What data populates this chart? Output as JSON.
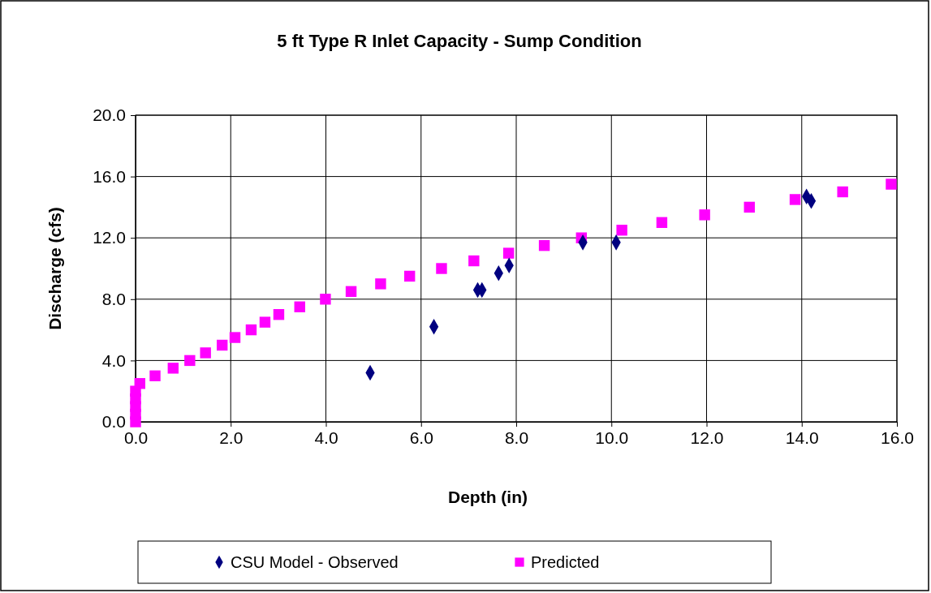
{
  "chart_data": {
    "type": "scatter",
    "title": "5 ft Type R Inlet Capacity - Sump Condition",
    "xlabel": "Depth (in)",
    "ylabel": "Discharge (cfs)",
    "xlim": [
      0,
      16
    ],
    "xticks": [
      {
        "value": 0,
        "label": "0.0"
      },
      {
        "value": 2,
        "label": "2.0"
      },
      {
        "value": 4,
        "label": "4.0"
      },
      {
        "value": 6,
        "label": "6.0"
      },
      {
        "value": 8,
        "label": "8.0"
      },
      {
        "value": 10,
        "label": "10.0"
      },
      {
        "value": 12,
        "label": "12.0"
      },
      {
        "value": 14,
        "label": "14.0"
      },
      {
        "value": 16,
        "label": "16.0"
      }
    ],
    "ylim": [
      0,
      20
    ],
    "yticks": [
      {
        "value": 0,
        "label": "0.0"
      },
      {
        "value": 4,
        "label": "4.0"
      },
      {
        "value": 8,
        "label": "8.0"
      },
      {
        "value": 12,
        "label": "12.0"
      },
      {
        "value": 16,
        "label": "16.0"
      },
      {
        "value": 20,
        "label": "20.0"
      }
    ],
    "grid": true,
    "legend": "bottom",
    "series": [
      {
        "name": "CSU Model - Observed",
        "color": "#000080",
        "marker": "diamond",
        "x": [
          4.93,
          6.27,
          7.19,
          7.28,
          7.63,
          7.85,
          9.4,
          10.1,
          14.1,
          14.2
        ],
        "values": [
          3.2,
          6.2,
          8.6,
          8.6,
          9.7,
          10.2,
          11.7,
          11.7,
          14.7,
          14.4
        ]
      },
      {
        "name": "Predicted",
        "color": "#ff00ff",
        "marker": "square",
        "x": [
          0,
          0,
          0,
          0,
          0,
          0.09,
          0.41,
          0.79,
          1.14,
          1.47,
          1.82,
          2.09,
          2.43,
          2.72,
          3.01,
          3.45,
          3.99,
          4.53,
          5.15,
          5.76,
          6.43,
          7.11,
          7.84,
          8.59,
          9.37,
          10.22,
          11.06,
          11.96,
          12.9,
          13.86,
          14.86,
          15.88
        ],
        "values": [
          0,
          0.5,
          1.0,
          1.5,
          2.0,
          2.5,
          3.0,
          3.5,
          4.0,
          4.5,
          5.0,
          5.5,
          6.0,
          6.5,
          7.0,
          7.5,
          8.0,
          8.5,
          9.0,
          9.5,
          10.0,
          10.5,
          11.0,
          11.5,
          12.0,
          12.5,
          13.0,
          13.5,
          14.0,
          14.5,
          15.0,
          15.5
        ]
      }
    ]
  }
}
